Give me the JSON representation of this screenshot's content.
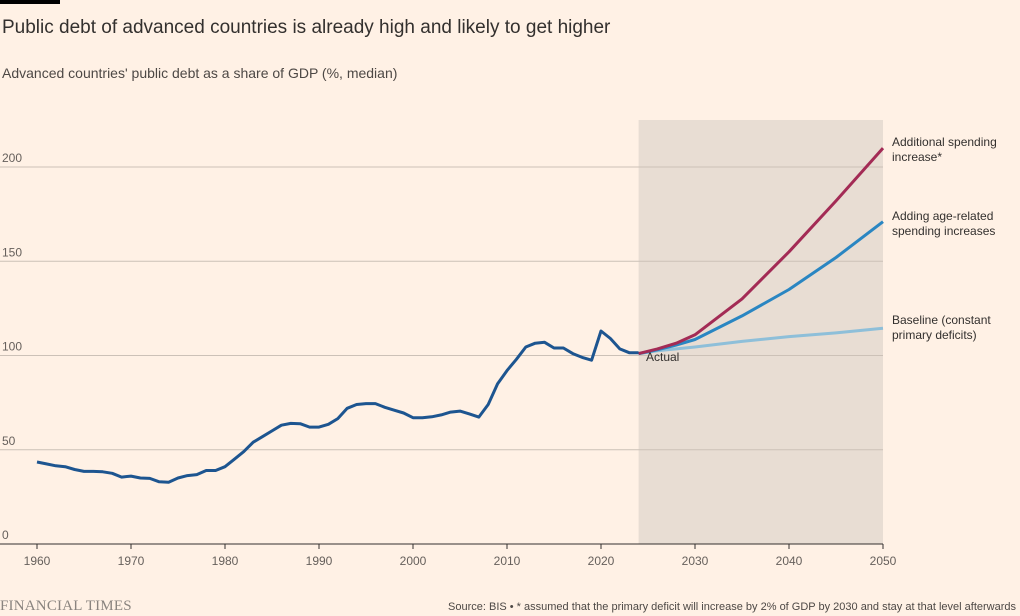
{
  "title": "Public debt of advanced countries is already high and likely to get higher",
  "subtitle": "Advanced countries' public debt as a share of GDP (%, median)",
  "source": "Source: BIS • * assumed that the primary deficit will increase by 2% of GDP by 2030 and stay at that level afterwards",
  "logo": "FINANCIAL TIMES",
  "chart_data": {
    "type": "line",
    "xlim": [
      1960,
      2050
    ],
    "ylim": [
      0,
      225
    ],
    "x_ticks": [
      "1960",
      "1970",
      "1980",
      "1990",
      "2000",
      "2010",
      "2020",
      "2030",
      "2040",
      "2050"
    ],
    "y_ticks": [
      "0",
      "50",
      "100",
      "150",
      "200"
    ],
    "grid": "horizontal",
    "shaded_projection_range": [
      2024,
      2050
    ],
    "series": [
      {
        "name": "Actual",
        "color": "#1d5590",
        "x": [
          1960,
          1961,
          1962,
          1963,
          1964,
          1965,
          1966,
          1967,
          1968,
          1969,
          1970,
          1971,
          1972,
          1973,
          1974,
          1975,
          1976,
          1977,
          1978,
          1979,
          1980,
          1981,
          1982,
          1983,
          1984,
          1985,
          1986,
          1987,
          1988,
          1989,
          1990,
          1991,
          1992,
          1993,
          1994,
          1995,
          1996,
          1997,
          1998,
          1999,
          2000,
          2001,
          2002,
          2003,
          2004,
          2005,
          2006,
          2007,
          2008,
          2009,
          2010,
          2011,
          2012,
          2013,
          2014,
          2015,
          2016,
          2017,
          2018,
          2019,
          2020,
          2021,
          2022,
          2023,
          2024
        ],
        "y": [
          43.5,
          42.5,
          41.5,
          41,
          39.5,
          38.5,
          38.5,
          38.3,
          37.5,
          35.5,
          36,
          35,
          34.8,
          33,
          32.8,
          35,
          36.3,
          36.8,
          39,
          39,
          41,
          45,
          49,
          54,
          57,
          60,
          63,
          64,
          63.8,
          62,
          62,
          63.5,
          66.5,
          72,
          74,
          74.5,
          74.5,
          72.5,
          71,
          69.5,
          67,
          67,
          67.5,
          68.5,
          70,
          70.5,
          69,
          67.3,
          74,
          85,
          92,
          98,
          104.5,
          106.5,
          107,
          104,
          104,
          101,
          99,
          97.5,
          113,
          109,
          103.5,
          101.5,
          101.5
        ]
      },
      {
        "name": "Additional spending increase*",
        "color": "#a32b55",
        "x": [
          2024,
          2026,
          2028,
          2030,
          2035,
          2040,
          2045,
          2050
        ],
        "y": [
          101,
          103.5,
          106.5,
          111,
          130,
          155,
          182,
          210
        ]
      },
      {
        "name": "Adding age-related spending increases",
        "color": "#2a86c2",
        "x": [
          2024,
          2026,
          2028,
          2030,
          2035,
          2040,
          2045,
          2050
        ],
        "y": [
          101,
          103,
          105.5,
          108.5,
          121,
          135,
          152,
          171
        ]
      },
      {
        "name": "Baseline (constant primary deficits)",
        "color": "#8ebfd9",
        "x": [
          2024,
          2026,
          2028,
          2030,
          2035,
          2040,
          2045,
          2050
        ],
        "y": [
          101,
          102.5,
          103.5,
          104.5,
          107.5,
          110,
          112,
          114.5
        ]
      }
    ],
    "labels": {
      "actual": "Actual",
      "red": [
        "Additional spending",
        "increase*"
      ],
      "blue": [
        "Adding age-related",
        "spending increases"
      ],
      "light": [
        "Baseline (constant",
        "primary deficits)"
      ]
    }
  }
}
